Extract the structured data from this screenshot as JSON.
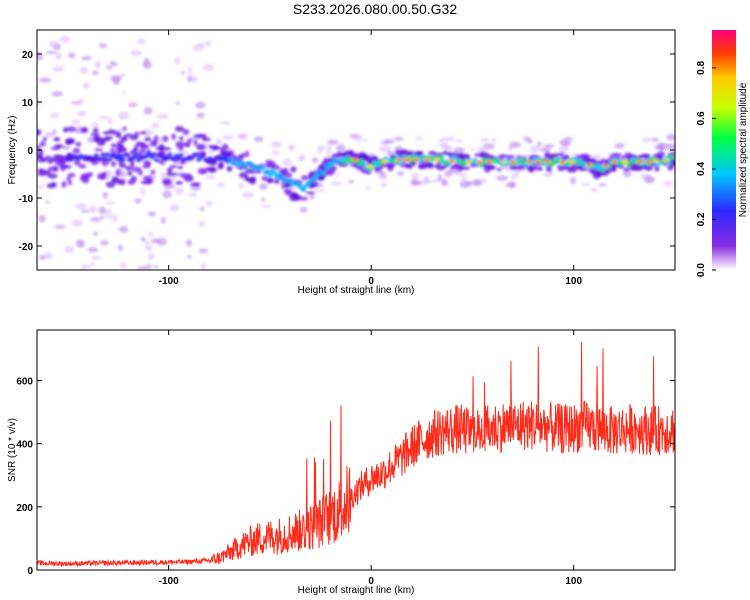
{
  "title": "S233.2026.080.00.50.G32",
  "colors": {
    "snr_line": "#ff2a1a",
    "axis": "#000000",
    "background": "#ffffff"
  },
  "chart_data": [
    {
      "type": "heatmap",
      "name": "spectrogram",
      "xlabel": "Height of straight line (km)",
      "ylabel": "Frequency (Hz)",
      "xlim": [
        -165,
        150
      ],
      "ylim": [
        -25,
        25
      ],
      "xticks": [
        -100,
        0,
        100
      ],
      "yticks": [
        -20,
        -10,
        0,
        10,
        20
      ],
      "ridge": {
        "description": "frequency centroid of signal vs height",
        "x": [
          -165,
          -120,
          -90,
          -70,
          -55,
          -45,
          -38,
          -33,
          -28,
          -22,
          -15,
          -8,
          0,
          5,
          15,
          30,
          50,
          70,
          90,
          105,
          112,
          120,
          135,
          150
        ],
        "y": [
          -1.5,
          -1.5,
          -1.5,
          -2.0,
          -4.0,
          -5.5,
          -7.0,
          -8.0,
          -6.0,
          -3.5,
          -2.0,
          -2.0,
          -3.5,
          -2.5,
          -2.0,
          -2.0,
          -2.5,
          -2.5,
          -2.5,
          -2.5,
          -4.0,
          -2.5,
          -2.5,
          -2.0
        ]
      },
      "colorbar": {
        "label": "Normalized spectral amplitude",
        "range": [
          0.0,
          0.95
        ],
        "ticks": [
          "0.0",
          "0.2",
          "0.4",
          "0.6",
          "0.8"
        ]
      }
    },
    {
      "type": "line",
      "name": "snr",
      "xlabel": "Height of straight line (km)",
      "ylabel": "SNR (10 * v/v)",
      "xlim": [
        -165,
        150
      ],
      "ylim": [
        0,
        760
      ],
      "xticks": [
        -100,
        0,
        100
      ],
      "yticks": [
        0,
        200,
        400,
        600
      ],
      "series": [
        {
          "name": "SNR",
          "x": [
            -165,
            -150,
            -130,
            -110,
            -90,
            -80,
            -75,
            -70,
            -65,
            -60,
            -55,
            -50,
            -45,
            -40,
            -35,
            -30,
            -25,
            -20,
            -15,
            -10,
            -5,
            0,
            5,
            10,
            15,
            20,
            25,
            30,
            35,
            40,
            45,
            50,
            55,
            60,
            65,
            70,
            75,
            80,
            85,
            90,
            95,
            100,
            105,
            110,
            115,
            120,
            125,
            130,
            135,
            140,
            145,
            150
          ],
          "y": [
            22,
            20,
            22,
            24,
            26,
            30,
            38,
            55,
            75,
            90,
            100,
            105,
            110,
            118,
            125,
            135,
            150,
            170,
            195,
            230,
            265,
            290,
            305,
            330,
            355,
            390,
            410,
            430,
            440,
            445,
            445,
            430,
            440,
            450,
            455,
            455,
            460,
            460,
            455,
            450,
            445,
            450,
            455,
            450,
            445,
            440,
            445,
            450,
            445,
            440,
            445,
            445
          ]
        }
      ]
    }
  ]
}
